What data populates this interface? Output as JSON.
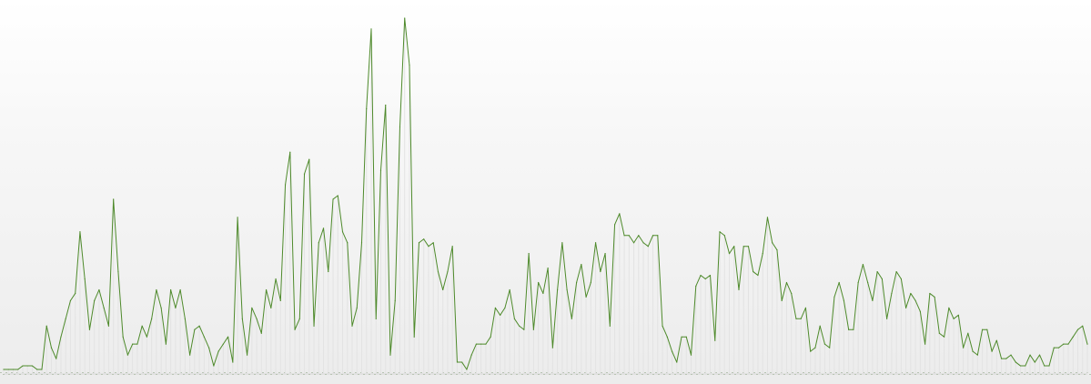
{
  "chart_data": {
    "type": "line",
    "title": "",
    "xlabel": "",
    "ylabel": "",
    "x_tick_labels_legible": false,
    "ylim": [
      0,
      100
    ],
    "grid": false,
    "legend": "none",
    "series": [
      {
        "color": "#4e8a2b",
        "values": [
          1,
          1,
          1,
          1,
          2,
          2,
          2,
          1,
          1,
          13,
          7,
          4,
          10,
          15,
          20,
          22,
          39,
          26,
          12,
          20,
          23,
          18,
          13,
          48,
          28,
          10,
          5,
          8,
          8,
          13,
          10,
          15,
          23,
          18,
          8,
          23,
          18,
          23,
          15,
          5,
          12,
          13,
          10,
          7,
          2,
          6,
          8,
          10,
          3,
          43,
          15,
          5,
          18,
          15,
          11,
          23,
          18,
          26,
          20,
          52,
          61,
          12,
          15,
          55,
          59,
          13,
          36,
          40,
          28,
          48,
          49,
          39,
          36,
          13,
          18,
          36,
          73,
          95,
          15,
          56,
          74,
          5,
          20,
          68,
          98,
          85,
          10,
          36,
          37,
          35,
          36,
          28,
          23,
          28,
          35,
          3,
          3,
          1,
          5,
          8,
          8,
          8,
          10,
          18,
          16,
          18,
          23,
          15,
          13,
          12,
          33,
          12,
          25,
          22,
          29,
          7,
          23,
          36,
          23,
          15,
          25,
          30,
          21,
          25,
          36,
          28,
          33,
          13,
          41,
          44,
          38,
          38,
          36,
          38,
          36,
          35,
          38,
          38,
          13,
          10,
          6,
          3,
          10,
          10,
          5,
          24,
          27,
          26,
          27,
          9,
          39,
          38,
          33,
          35,
          23,
          35,
          35,
          28,
          27,
          33,
          43,
          36,
          34,
          20,
          25,
          22,
          15,
          15,
          18,
          6,
          7,
          13,
          8,
          7,
          21,
          25,
          20,
          12,
          12,
          25,
          30,
          25,
          20,
          28,
          26,
          15,
          22,
          28,
          26,
          18,
          22,
          20,
          17,
          8,
          22,
          21,
          11,
          10,
          18,
          15,
          16,
          7,
          11,
          6,
          5,
          12,
          12,
          6,
          9,
          4,
          4,
          5,
          3,
          2,
          2,
          5,
          3,
          5,
          2,
          2,
          7,
          7,
          8,
          8,
          10,
          12,
          13,
          8
        ]
      }
    ]
  }
}
